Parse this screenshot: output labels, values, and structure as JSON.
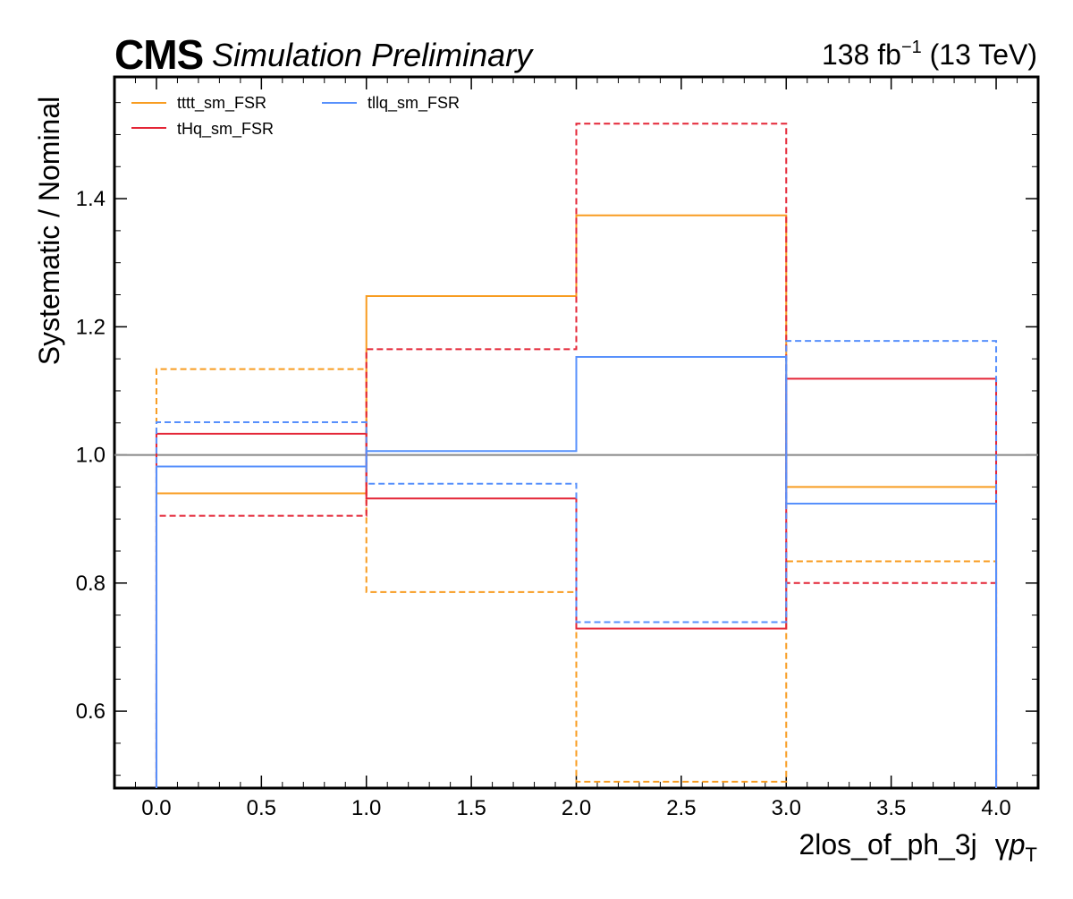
{
  "header": {
    "experiment": "CMS",
    "status": "Simulation Preliminary",
    "lumi_value": "138 fb",
    "lumi_exponent": "−1",
    "energy": " (13 TeV)"
  },
  "chart_data": {
    "type": "line",
    "style": "step-histogram",
    "xlabel_main": "2los_of_ph_3j",
    "xlabel_var": "γ",
    "xlabel_p": "p",
    "xlabel_sub": "T",
    "ylabel": "Systematic / Nominal",
    "xlim": [
      -0.2,
      4.2
    ],
    "ylim": [
      0.48,
      1.59
    ],
    "bin_edges": [
      0,
      1,
      2,
      3,
      4
    ],
    "x_ticks": [
      "0.0",
      "0.5",
      "1.0",
      "1.5",
      "2.0",
      "2.5",
      "3.0",
      "3.5",
      "4.0"
    ],
    "y_ticks": [
      "0.6",
      "0.8",
      "1.0",
      "1.2",
      "1.4"
    ],
    "reference_line": 1.0,
    "legend_position": "top-left",
    "series": [
      {
        "name": "tttt_sm_FSR",
        "color": "#f89c20",
        "variant": "up",
        "dashed": false,
        "values": [
          0.94,
          1.248,
          1.374,
          0.95
        ]
      },
      {
        "name": "",
        "color": "#f89c20",
        "variant": "down",
        "dashed": true,
        "values": [
          1.134,
          0.786,
          0.49,
          0.834
        ]
      },
      {
        "name": "tHq_sm_FSR",
        "color": "#e42536",
        "variant": "up",
        "dashed": false,
        "values": [
          1.033,
          0.932,
          0.729,
          1.119
        ]
      },
      {
        "name": "",
        "color": "#e42536",
        "variant": "down",
        "dashed": true,
        "values": [
          0.905,
          1.165,
          1.517,
          0.8
        ]
      },
      {
        "name": "tllq_sm_FSR",
        "color": "#5790fc",
        "variant": "up",
        "dashed": false,
        "values": [
          0.982,
          1.006,
          1.153,
          0.924
        ]
      },
      {
        "name": "",
        "color": "#5790fc",
        "variant": "down",
        "dashed": true,
        "values": [
          1.051,
          0.955,
          0.739,
          1.178
        ]
      }
    ]
  }
}
